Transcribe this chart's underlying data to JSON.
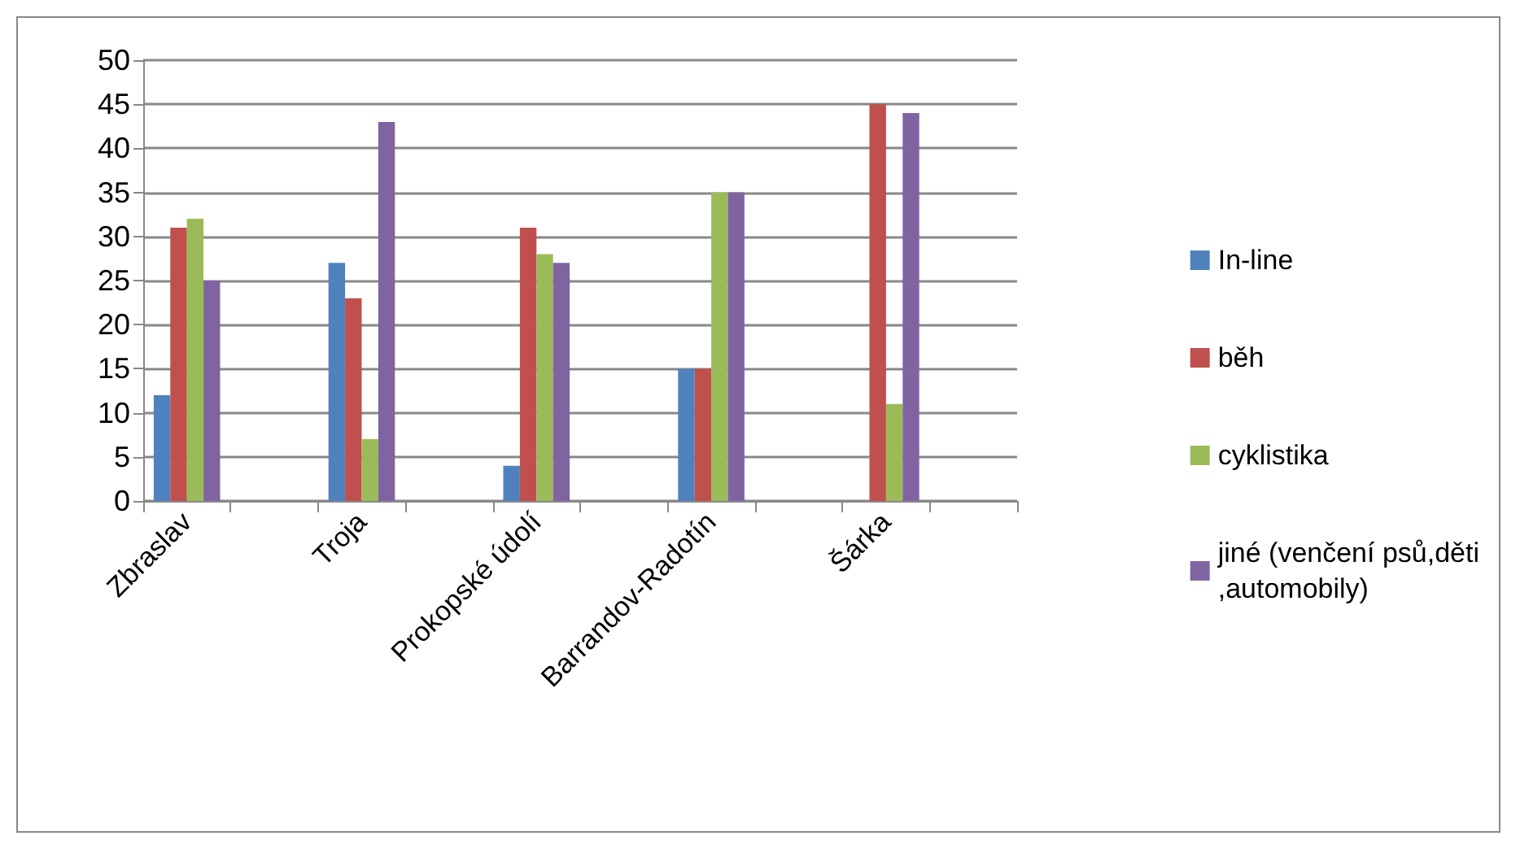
{
  "chart_data": {
    "type": "bar",
    "categories": [
      "Zbraslav",
      null,
      "Troja",
      null,
      "Prokopské údolí",
      null,
      "Barrandov-Radotín",
      null,
      "Šárka",
      null
    ],
    "series": [
      {
        "name": "In-line",
        "color": "#4f81bd",
        "values": [
          12,
          null,
          27,
          null,
          4,
          null,
          15,
          null,
          0,
          null
        ]
      },
      {
        "name": "běh",
        "color": "#c0504d",
        "values": [
          31,
          null,
          23,
          null,
          31,
          null,
          15,
          null,
          45,
          null
        ]
      },
      {
        "name": "cyklistika",
        "color": "#9bbb59",
        "values": [
          32,
          null,
          7,
          null,
          28,
          null,
          35,
          null,
          11,
          null
        ]
      },
      {
        "name": "jiné (venčení psů,děti\n,automobily)",
        "color": "#8064a2",
        "values": [
          25,
          null,
          43,
          null,
          27,
          null,
          35,
          null,
          44,
          null
        ]
      }
    ],
    "ylim": [
      0,
      50
    ],
    "yticks": [
      0,
      5,
      10,
      15,
      20,
      25,
      30,
      35,
      40,
      45,
      50
    ],
    "grid": "y",
    "legend": "right"
  }
}
